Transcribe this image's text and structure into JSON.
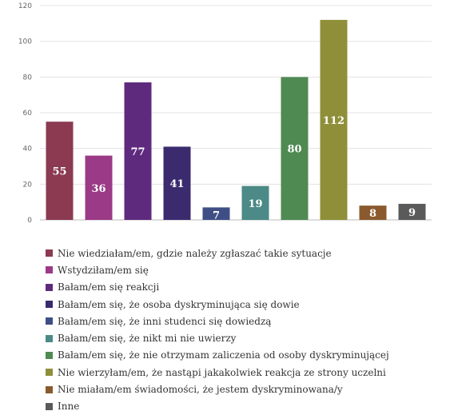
{
  "chart_data": {
    "type": "bar",
    "categories": [
      "Nie wiedziałam/em, gdzie należy zgłaszać takie sytuacje",
      "Wstydziłam/em się",
      "Bałam/em się reakcji",
      "Bałam/em się, że osoba dyskryminująca się dowie",
      "Bałam/em się, że inni studenci się dowiedzą",
      "Bałam/em się, że nikt mi nie uwierzy",
      "Bałam/em się, że nie otrzymam zaliczenia od osoby dyskryminującej",
      "Nie wierzyłam/em, że nastąpi jakakolwiek reakcja ze strony uczelni",
      "Nie miałam/em świadomości, że jestem dyskryminowana/y",
      "Inne"
    ],
    "values": [
      55,
      36,
      77,
      41,
      7,
      19,
      80,
      112,
      8,
      9
    ],
    "data_labels": [
      "55",
      "36",
      "77",
      "41",
      "7",
      "19",
      "80",
      "112",
      "8",
      "9"
    ],
    "colors": [
      "#8b3a52",
      "#9b3a86",
      "#5e2a7e",
      "#3b2a6e",
      "#3f4f86",
      "#4b8a86",
      "#4f8a52",
      "#8f8f3a",
      "#8a5a2e",
      "#5a5a5a"
    ],
    "ylim": [
      0,
      120
    ],
    "yticks": [
      "0",
      "20",
      "40",
      "60",
      "80",
      "100",
      "120"
    ],
    "grid": true,
    "legend_position": "bottom",
    "xlabel": "",
    "ylabel": "",
    "title": ""
  }
}
